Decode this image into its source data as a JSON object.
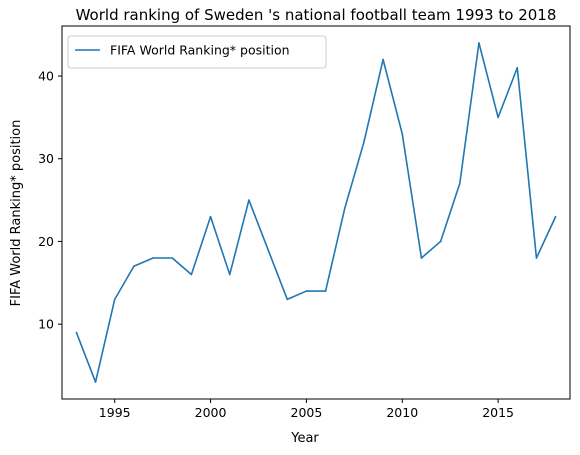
{
  "chart_data": {
    "type": "line",
    "title": "World ranking of Sweden 's national football team 1993 to 2018",
    "xlabel": "Year",
    "ylabel": "FIFA World Ranking* position",
    "xlim": [
      1992.25,
      2018.75
    ],
    "ylim": [
      0.95,
      46.05
    ],
    "xticks": [
      1995,
      2000,
      2005,
      2010,
      2015
    ],
    "yticks": [
      10,
      20,
      30,
      40
    ],
    "grid": false,
    "legend_position": "top-left",
    "series": [
      {
        "name": "FIFA World Ranking* position",
        "color": "#1f77b4",
        "x": [
          1993,
          1994,
          1995,
          1996,
          1997,
          1998,
          1999,
          2000,
          2001,
          2002,
          2003,
          2004,
          2005,
          2006,
          2007,
          2008,
          2009,
          2010,
          2011,
          2012,
          2013,
          2014,
          2015,
          2016,
          2017,
          2018
        ],
        "y": [
          9,
          3,
          13,
          17,
          18,
          18,
          16,
          23,
          16,
          25,
          19,
          13,
          14,
          14,
          24,
          32,
          42,
          33,
          18,
          20,
          27,
          44,
          35,
          41,
          18,
          23
        ]
      }
    ]
  }
}
